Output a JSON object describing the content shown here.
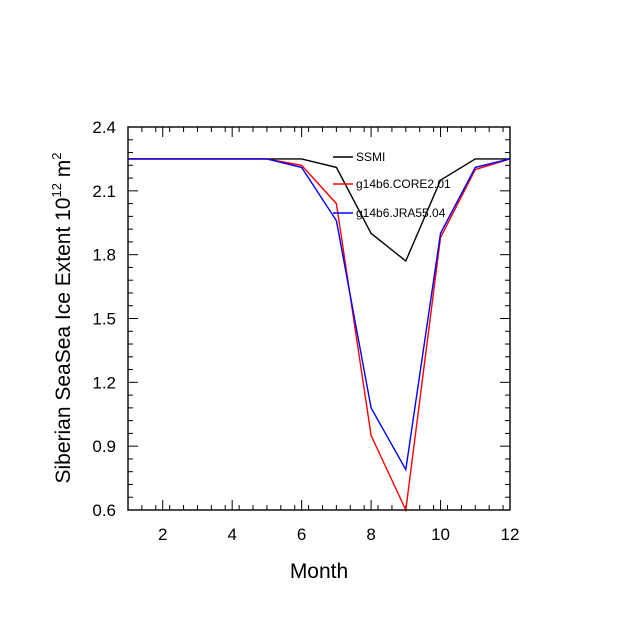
{
  "chart_data": {
    "type": "line",
    "xlabel": "Month",
    "ylabel_main": "Siberian SeaSea Ice Extent 10",
    "ylabel_sup": "12",
    "ylabel_unit": " m",
    "ylabel_unit_sup": "2",
    "xlim": [
      1,
      12
    ],
    "ylim": [
      0.6,
      2.4
    ],
    "xticks": [
      2,
      4,
      6,
      8,
      10,
      12
    ],
    "yticks": [
      0.6,
      0.9,
      1.2,
      1.5,
      1.8,
      2.1,
      2.4
    ],
    "ytick_labels": [
      "0.6",
      "0.9",
      "1.2",
      "1.5",
      "1.8",
      "2.1",
      "2.4"
    ],
    "x": [
      1,
      2,
      3,
      4,
      5,
      6,
      7,
      8,
      9,
      10,
      11,
      12
    ],
    "grid": false,
    "legend_position": "top-center inside plot",
    "series": [
      {
        "name": "SSMI",
        "color": "#000000",
        "values": [
          2.25,
          2.25,
          2.25,
          2.25,
          2.25,
          2.25,
          2.21,
          1.9,
          1.77,
          2.15,
          2.25,
          2.25
        ]
      },
      {
        "name": "g14b6.CORE2.01",
        "color": "#ff0000",
        "values": [
          2.25,
          2.25,
          2.25,
          2.25,
          2.25,
          2.22,
          2.04,
          0.95,
          0.6,
          1.88,
          2.2,
          2.25
        ]
      },
      {
        "name": "g14b6.JRA55.04",
        "color": "#0000ff",
        "values": [
          2.25,
          2.25,
          2.25,
          2.25,
          2.25,
          2.21,
          1.96,
          1.08,
          0.79,
          1.9,
          2.21,
          2.25
        ]
      }
    ]
  }
}
